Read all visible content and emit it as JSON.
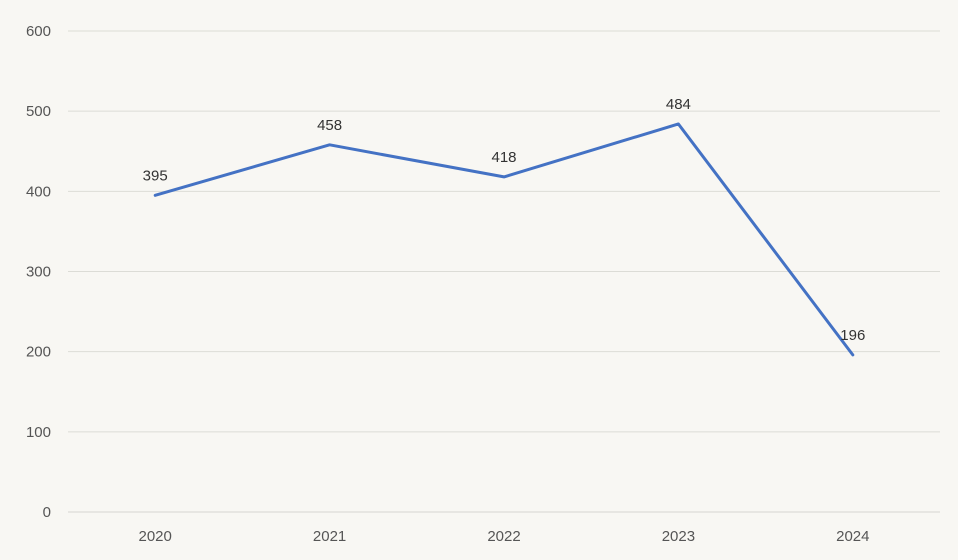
{
  "chart_data": {
    "type": "line",
    "title": "",
    "xlabel": "",
    "ylabel": "",
    "categories": [
      "2020",
      "2021",
      "2022",
      "2023",
      "2024"
    ],
    "series": [
      {
        "values": [
          395,
          458,
          418,
          484,
          196
        ]
      }
    ],
    "ylim": [
      0,
      600
    ],
    "yticks": [
      0,
      100,
      200,
      300,
      400,
      500,
      600
    ],
    "grid": true,
    "legend": "none",
    "data_labels": true,
    "colors": {
      "background": "#f8f7f3",
      "line": "#4472c4",
      "grid": "#dcdcd6"
    }
  }
}
